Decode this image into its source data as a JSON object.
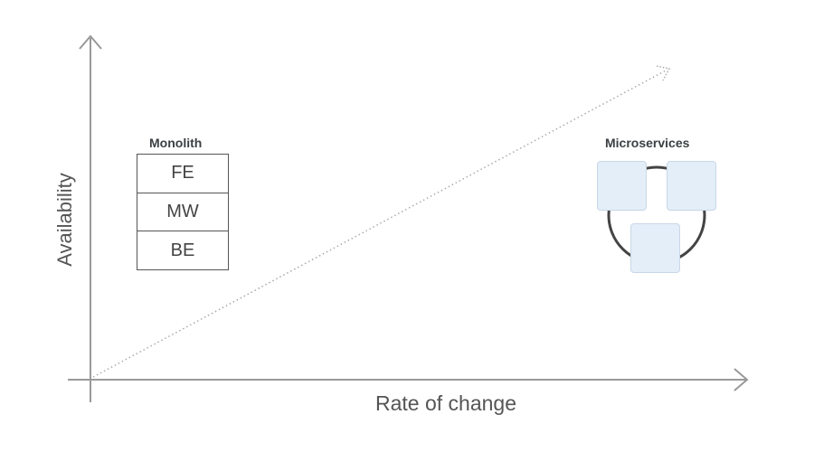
{
  "axes": {
    "x_label": "Rate of change",
    "y_label": "Availability"
  },
  "monolith": {
    "caption": "Monolith",
    "layers": [
      "FE",
      "MW",
      "BE"
    ]
  },
  "microservices": {
    "caption": "Microservices",
    "service_count": 3
  },
  "colors": {
    "axis": "#999999",
    "trend_line": "#aaaaaa",
    "service_fill": "#e3eef8",
    "ring": "#444444"
  }
}
